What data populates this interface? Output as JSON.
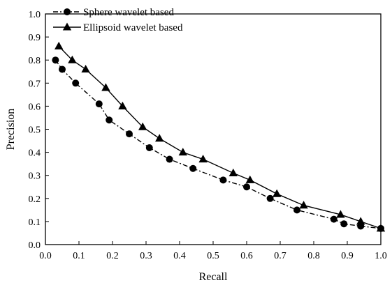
{
  "chart_data": {
    "type": "line",
    "title": "",
    "xlabel": "Recall",
    "ylabel": "Precision",
    "xlim": [
      0.0,
      1.0
    ],
    "ylim": [
      0.0,
      1.0
    ],
    "x_ticks": [
      "0.0",
      "0.1",
      "0.2",
      "0.3",
      "0.4",
      "0.5",
      "0.6",
      "0.7",
      "0.8",
      "0.9",
      "1.0"
    ],
    "y_ticks": [
      "0.0",
      "0.1",
      "0.2",
      "0.3",
      "0.4",
      "0.5",
      "0.6",
      "0.7",
      "0.8",
      "0.9",
      "1.0"
    ],
    "grid": false,
    "legend_position": "top-left",
    "series": [
      {
        "name": "Sphere wavelet based",
        "marker": "circle",
        "line_style": "dash-dot",
        "color": "#000000",
        "points": [
          [
            0.03,
            0.8
          ],
          [
            0.05,
            0.76
          ],
          [
            0.09,
            0.7
          ],
          [
            0.16,
            0.61
          ],
          [
            0.19,
            0.54
          ],
          [
            0.25,
            0.48
          ],
          [
            0.31,
            0.42
          ],
          [
            0.37,
            0.37
          ],
          [
            0.44,
            0.33
          ],
          [
            0.53,
            0.28
          ],
          [
            0.6,
            0.25
          ],
          [
            0.67,
            0.2
          ],
          [
            0.75,
            0.15
          ],
          [
            0.86,
            0.11
          ],
          [
            0.89,
            0.09
          ],
          [
            0.94,
            0.08
          ],
          [
            1.0,
            0.07
          ]
        ]
      },
      {
        "name": "Ellipsoid wavelet based",
        "marker": "triangle",
        "line_style": "solid",
        "color": "#000000",
        "points": [
          [
            0.04,
            0.86
          ],
          [
            0.08,
            0.8
          ],
          [
            0.12,
            0.76
          ],
          [
            0.18,
            0.68
          ],
          [
            0.23,
            0.6
          ],
          [
            0.29,
            0.51
          ],
          [
            0.34,
            0.46
          ],
          [
            0.41,
            0.4
          ],
          [
            0.47,
            0.37
          ],
          [
            0.56,
            0.31
          ],
          [
            0.61,
            0.28
          ],
          [
            0.69,
            0.22
          ],
          [
            0.77,
            0.17
          ],
          [
            0.88,
            0.13
          ],
          [
            0.94,
            0.1
          ],
          [
            1.0,
            0.07
          ]
        ]
      }
    ]
  }
}
